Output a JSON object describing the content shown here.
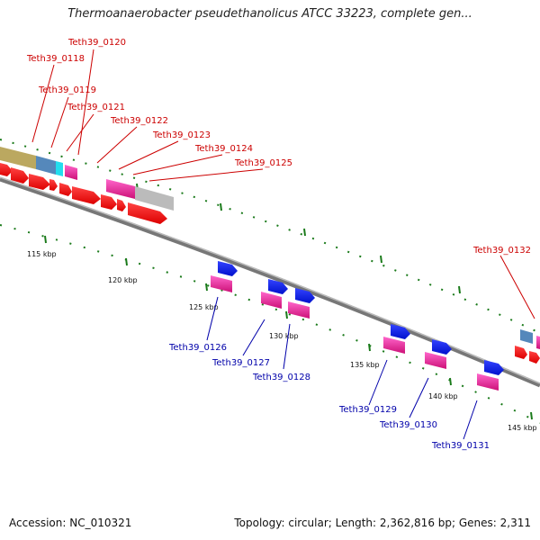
{
  "title": "Thermoanaerobacter pseudethanolicus ATCC 33223, complete gen...",
  "footer": {
    "accession": "Accession: NC_010321",
    "summary": "Topology: circular; Length: 2,362,816 bp; Genes: 2,311"
  },
  "colors": {
    "label_top": "#cc0000",
    "label_bottom": "#0000aa",
    "tick": "#1a7a1a",
    "red_gene": "#ff0000",
    "blue_gene": "#1020ee",
    "magenta_gene": "#ee2299",
    "backbone": "#888888"
  },
  "kbp_labels": [
    "115 kbp",
    "120 kbp",
    "125 kbp",
    "130 kbp",
    "135 kbp",
    "140 kbp",
    "145 kbp"
  ],
  "top_genes": [
    "Teth39_0120",
    "Teth39_0118",
    "Teth39_0119",
    "Teth39_0121",
    "Teth39_0122",
    "Teth39_0123",
    "Teth39_0124",
    "Teth39_0125",
    "Teth39_0132"
  ],
  "bottom_genes": [
    "Teth39_0126",
    "Teth39_0127",
    "Teth39_0128",
    "Teth39_0129",
    "Teth39_0130",
    "Teth39_0131"
  ]
}
